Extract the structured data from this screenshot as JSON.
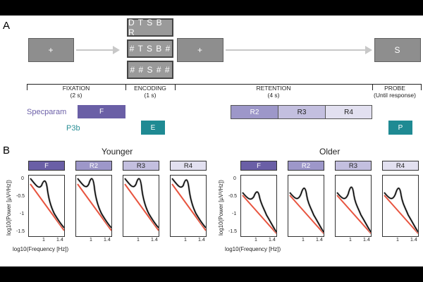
{
  "panel_a": {
    "label": "A",
    "stimuli": {
      "fixation": "+",
      "encoding_top": "D T S B R",
      "encoding_mid": "# T S B #",
      "encoding_bot": "# # S # #",
      "retention": "+",
      "probe": "S"
    },
    "phases": {
      "fixation": "FIXATION",
      "fixation_dur": "(2 s)",
      "encoding": "ENCODING",
      "encoding_dur": "(1 s)",
      "retention": "RETENTION",
      "retention_dur": "(4 s)",
      "probe": "PROBE",
      "probe_dur": "(Until response)"
    },
    "rows": {
      "specparam_label": "Specparam",
      "p3b_label": "P3b",
      "specparam_color": "#6b5fa8",
      "p3b_color": "#2a8f96"
    },
    "bars": {
      "f": "F",
      "r2": "R2",
      "r3": "R3",
      "r4": "R4",
      "e": "E",
      "p": "P"
    }
  },
  "panel_b": {
    "label": "B",
    "groups": [
      {
        "title": "Younger",
        "conditions": [
          "F",
          "R2",
          "R3",
          "R4"
        ]
      },
      {
        "title": "Older",
        "conditions": [
          "F",
          "R2",
          "R3",
          "R4"
        ]
      }
    ],
    "ylabel": "log10(Power [µV²/Hz])",
    "xlabel": "log10(Frequency [Hz])",
    "yticks": [
      "0",
      "-0.5",
      "-1",
      "-1.5"
    ],
    "xticks": [
      "1",
      "1.4"
    ],
    "colors": {
      "spectrum": "#000000",
      "aperiodic": "#e8543f",
      "shade": "#b5b5b5",
      "f": "#6a5fa6",
      "r2": "#9d97c9",
      "r3": "#c3bfdf",
      "r4": "#e2e0f0"
    }
  }
}
